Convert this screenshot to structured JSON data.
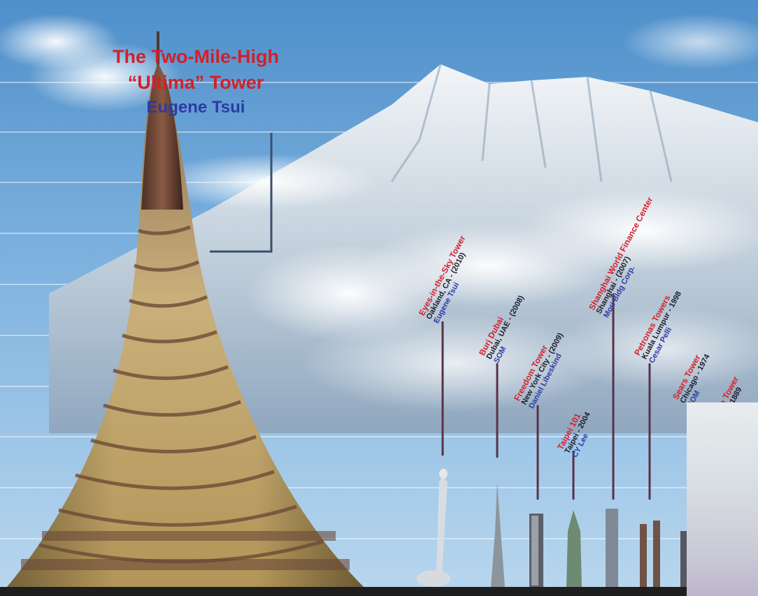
{
  "title": {
    "line1": "The Two-Mile-High",
    "line2": "“Ultima” Tower",
    "author": "Eugene Tsui"
  },
  "colors": {
    "title_red": "#d41f2a",
    "author_blue": "#2d3aa6",
    "sky": "#6ea6d8",
    "ground": "#1e1e1e"
  },
  "buildings": [
    {
      "name": "Eyes-in-the-Sky Tower",
      "line2": "Oakland, CA - (2010)",
      "line3": "Eugene Tsui"
    },
    {
      "name": "Burj Dubai",
      "line2": "Dubai, UAE - (2008)",
      "line3": "SOM"
    },
    {
      "name": "Freedom Tower",
      "line2": "New York City - (2009)",
      "line3": "Daniel Libeskind"
    },
    {
      "name": "Taipei 101",
      "line2": "Taipei - 2004",
      "line3": "CY Lee"
    },
    {
      "name": "Shanghai World Finance Center",
      "line2": "Shanghai - (2007)",
      "line3": "Mori Bldg Corp."
    },
    {
      "name": "Petronas Towers",
      "line2": "Kuala Lumpur - 1998",
      "line3": "Cesar Pelli"
    },
    {
      "name": "Sears Tower",
      "line2": "Chicago - 1974",
      "line3": "SOM"
    },
    {
      "name": "...e Tower",
      "line2": "... - 1889",
      "line3": ""
    }
  ]
}
